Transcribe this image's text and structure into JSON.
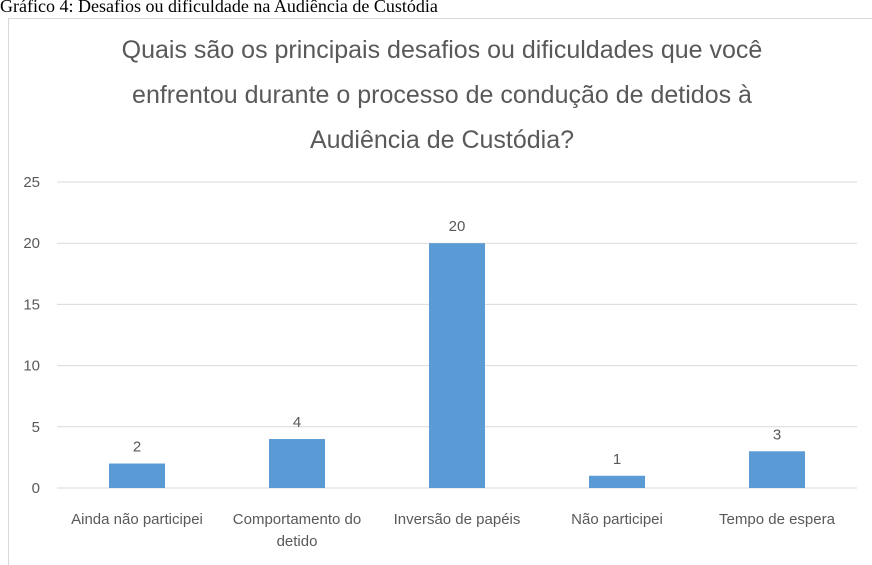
{
  "caption": "Gráfico 4: Desafios ou dificuldade na Audiência de Custódia",
  "chart_data": {
    "type": "bar",
    "title": "Quais são os principais desafios ou dificuldades que você enfrentou durante o processo de condução de detidos à Audiência de Custódia?",
    "categories": [
      "Ainda não participei",
      "Comportamento do detido",
      "Inversão de papéis",
      "Não participei",
      "Tempo de espera"
    ],
    "values": [
      2,
      4,
      20,
      1,
      3
    ],
    "color": "#5b9bd5",
    "ylim": [
      0,
      25
    ],
    "yticks": [
      0,
      5,
      10,
      15,
      20,
      25
    ],
    "grid": true
  }
}
